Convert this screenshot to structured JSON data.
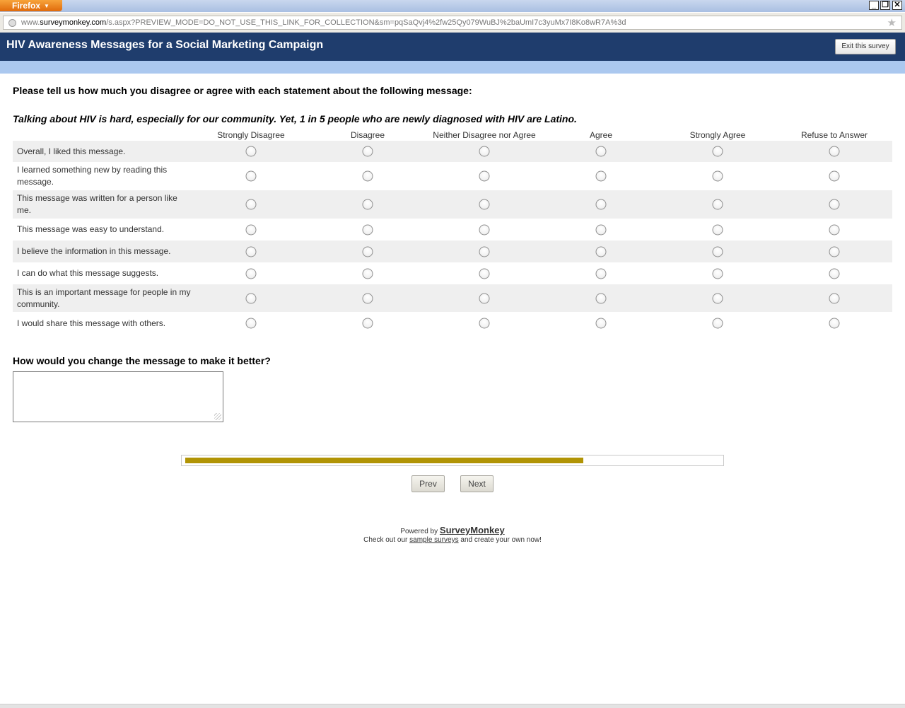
{
  "browser": {
    "menu_label": "Firefox",
    "url_prefix": "www.",
    "url_domain": "surveymonkey.com",
    "url_rest": "/s.aspx?PREVIEW_MODE=DO_NOT_USE_THIS_LINK_FOR_COLLECTION&sm=pqSaQvj4%2fw25Qy079WuBJ%2baUmI7c3yuMx7I8Ko8wR7A%3d",
    "minimize": "_",
    "restore": "❐",
    "close": "✕"
  },
  "header": {
    "title": "HIV Awareness Messages for a Social Marketing Campaign",
    "exit_label": "Exit this survey"
  },
  "question1": {
    "prompt": "Please tell us how much you disagree or agree with each statement about the following message:",
    "message": "Talking about HIV is hard, especially for our community. Yet, 1 in 5 people who are newly diagnosed with HIV are Latino.",
    "columns": [
      "Strongly Disagree",
      "Disagree",
      "Neither Disagree nor Agree",
      "Agree",
      "Strongly Agree",
      "Refuse to Answer"
    ],
    "rows": [
      "Overall, I liked this message.",
      "I learned something new by reading this message.",
      "This message was written for a person like me.",
      "This message was easy to understand.",
      "I believe the information in this message.",
      "I can do what this message suggests.",
      "This is an important message for people in my community.",
      "I would share this message with others."
    ]
  },
  "question2": {
    "prompt": "How would you change the message to make it better?",
    "answer": ""
  },
  "progress": {
    "fraction": 0.745
  },
  "nav": {
    "prev_label": "Prev",
    "next_label": "Next"
  },
  "footer": {
    "powered_by": "Powered by",
    "brand": "SurveyMonkey",
    "check_out": "Check out our",
    "sample_link": "sample surveys",
    "create": "and create your own now!"
  }
}
